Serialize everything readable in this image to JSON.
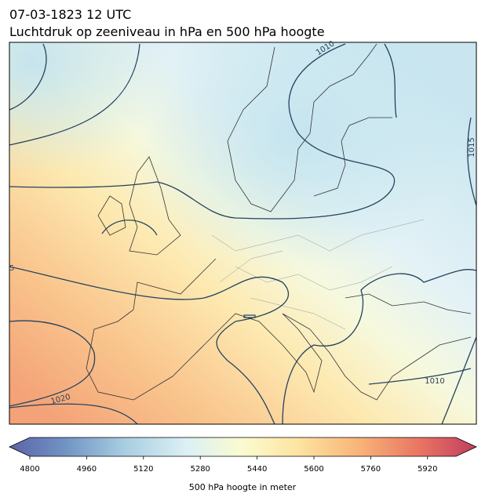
{
  "header": {
    "title": "07-03-1823 12 UTC",
    "subtitle": "Luchtdruk op zeeniveau in hPa en 500 hPa hoogte"
  },
  "map": {
    "contour_labels": [
      "1010",
      "1015",
      "5",
      "1020",
      "1010"
    ]
  },
  "colorbar": {
    "range": [
      4800,
      6000
    ],
    "ticks": [
      4800,
      4960,
      5120,
      5280,
      5440,
      5600,
      5760,
      5920
    ],
    "label": "500 hPa hoogte in meter"
  }
}
